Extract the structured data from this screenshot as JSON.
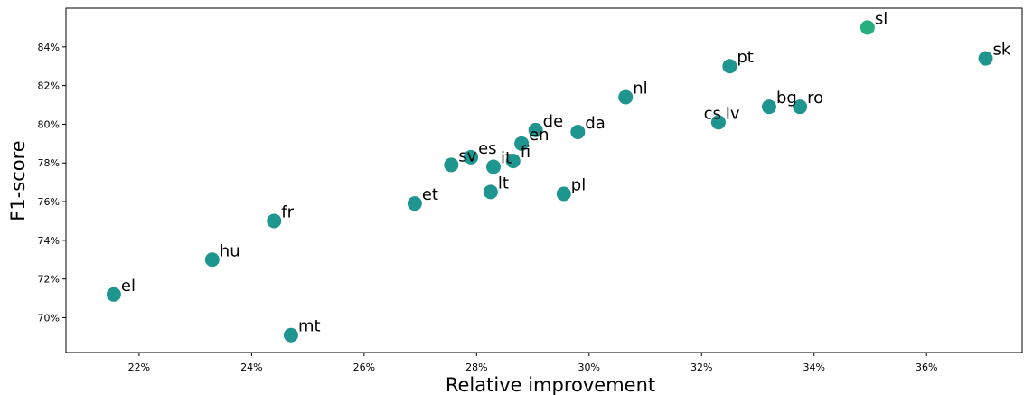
{
  "chart_data": {
    "type": "scatter",
    "title": "",
    "xlabel": "Relative improvement",
    "ylabel": "F1-score",
    "xlim": [
      20.7,
      37.7
    ],
    "ylim": [
      68.2,
      86.0
    ],
    "x_ticks": [
      22,
      24,
      26,
      28,
      30,
      32,
      34,
      36
    ],
    "x_tick_labels": [
      "22%",
      "24%",
      "26%",
      "28%",
      "30%",
      "32%",
      "34%",
      "36%"
    ],
    "y_ticks": [
      70,
      72,
      74,
      76,
      78,
      80,
      82,
      84
    ],
    "y_tick_labels": [
      "70%",
      "72%",
      "74%",
      "76%",
      "78%",
      "80%",
      "82%",
      "84%"
    ],
    "grid": false,
    "colors": {
      "point": "#1f9590",
      "highlight": "#27ae7d"
    },
    "points": [
      {
        "label": "el",
        "x": 21.55,
        "y": 71.2
      },
      {
        "label": "hu",
        "x": 23.3,
        "y": 73.0
      },
      {
        "label": "mt",
        "x": 24.7,
        "y": 69.1
      },
      {
        "label": "fr",
        "x": 24.4,
        "y": 75.0
      },
      {
        "label": "et",
        "x": 26.9,
        "y": 75.9
      },
      {
        "label": "sv",
        "x": 27.55,
        "y": 77.9
      },
      {
        "label": "es",
        "x": 27.9,
        "y": 78.3
      },
      {
        "label": "lt",
        "x": 28.25,
        "y": 76.5
      },
      {
        "label": "it",
        "x": 28.3,
        "y": 77.8
      },
      {
        "label": "fi",
        "x": 28.65,
        "y": 78.1
      },
      {
        "label": "en",
        "x": 28.8,
        "y": 79.0
      },
      {
        "label": "de",
        "x": 29.05,
        "y": 79.7
      },
      {
        "label": "pl",
        "x": 29.55,
        "y": 76.4
      },
      {
        "label": "da",
        "x": 29.8,
        "y": 79.6
      },
      {
        "label": "nl",
        "x": 30.65,
        "y": 81.4
      },
      {
        "label": "cs",
        "x": 32.3,
        "y": 80.1,
        "label_side": "left"
      },
      {
        "label": "lv",
        "x": 32.3,
        "y": 80.1
      },
      {
        "label": "pt",
        "x": 32.5,
        "y": 83.0
      },
      {
        "label": "bg",
        "x": 33.2,
        "y": 80.9
      },
      {
        "label": "ro",
        "x": 33.75,
        "y": 80.9
      },
      {
        "label": "sl",
        "x": 34.95,
        "y": 85.0,
        "highlight": true
      },
      {
        "label": "sk",
        "x": 37.05,
        "y": 83.4
      }
    ]
  }
}
